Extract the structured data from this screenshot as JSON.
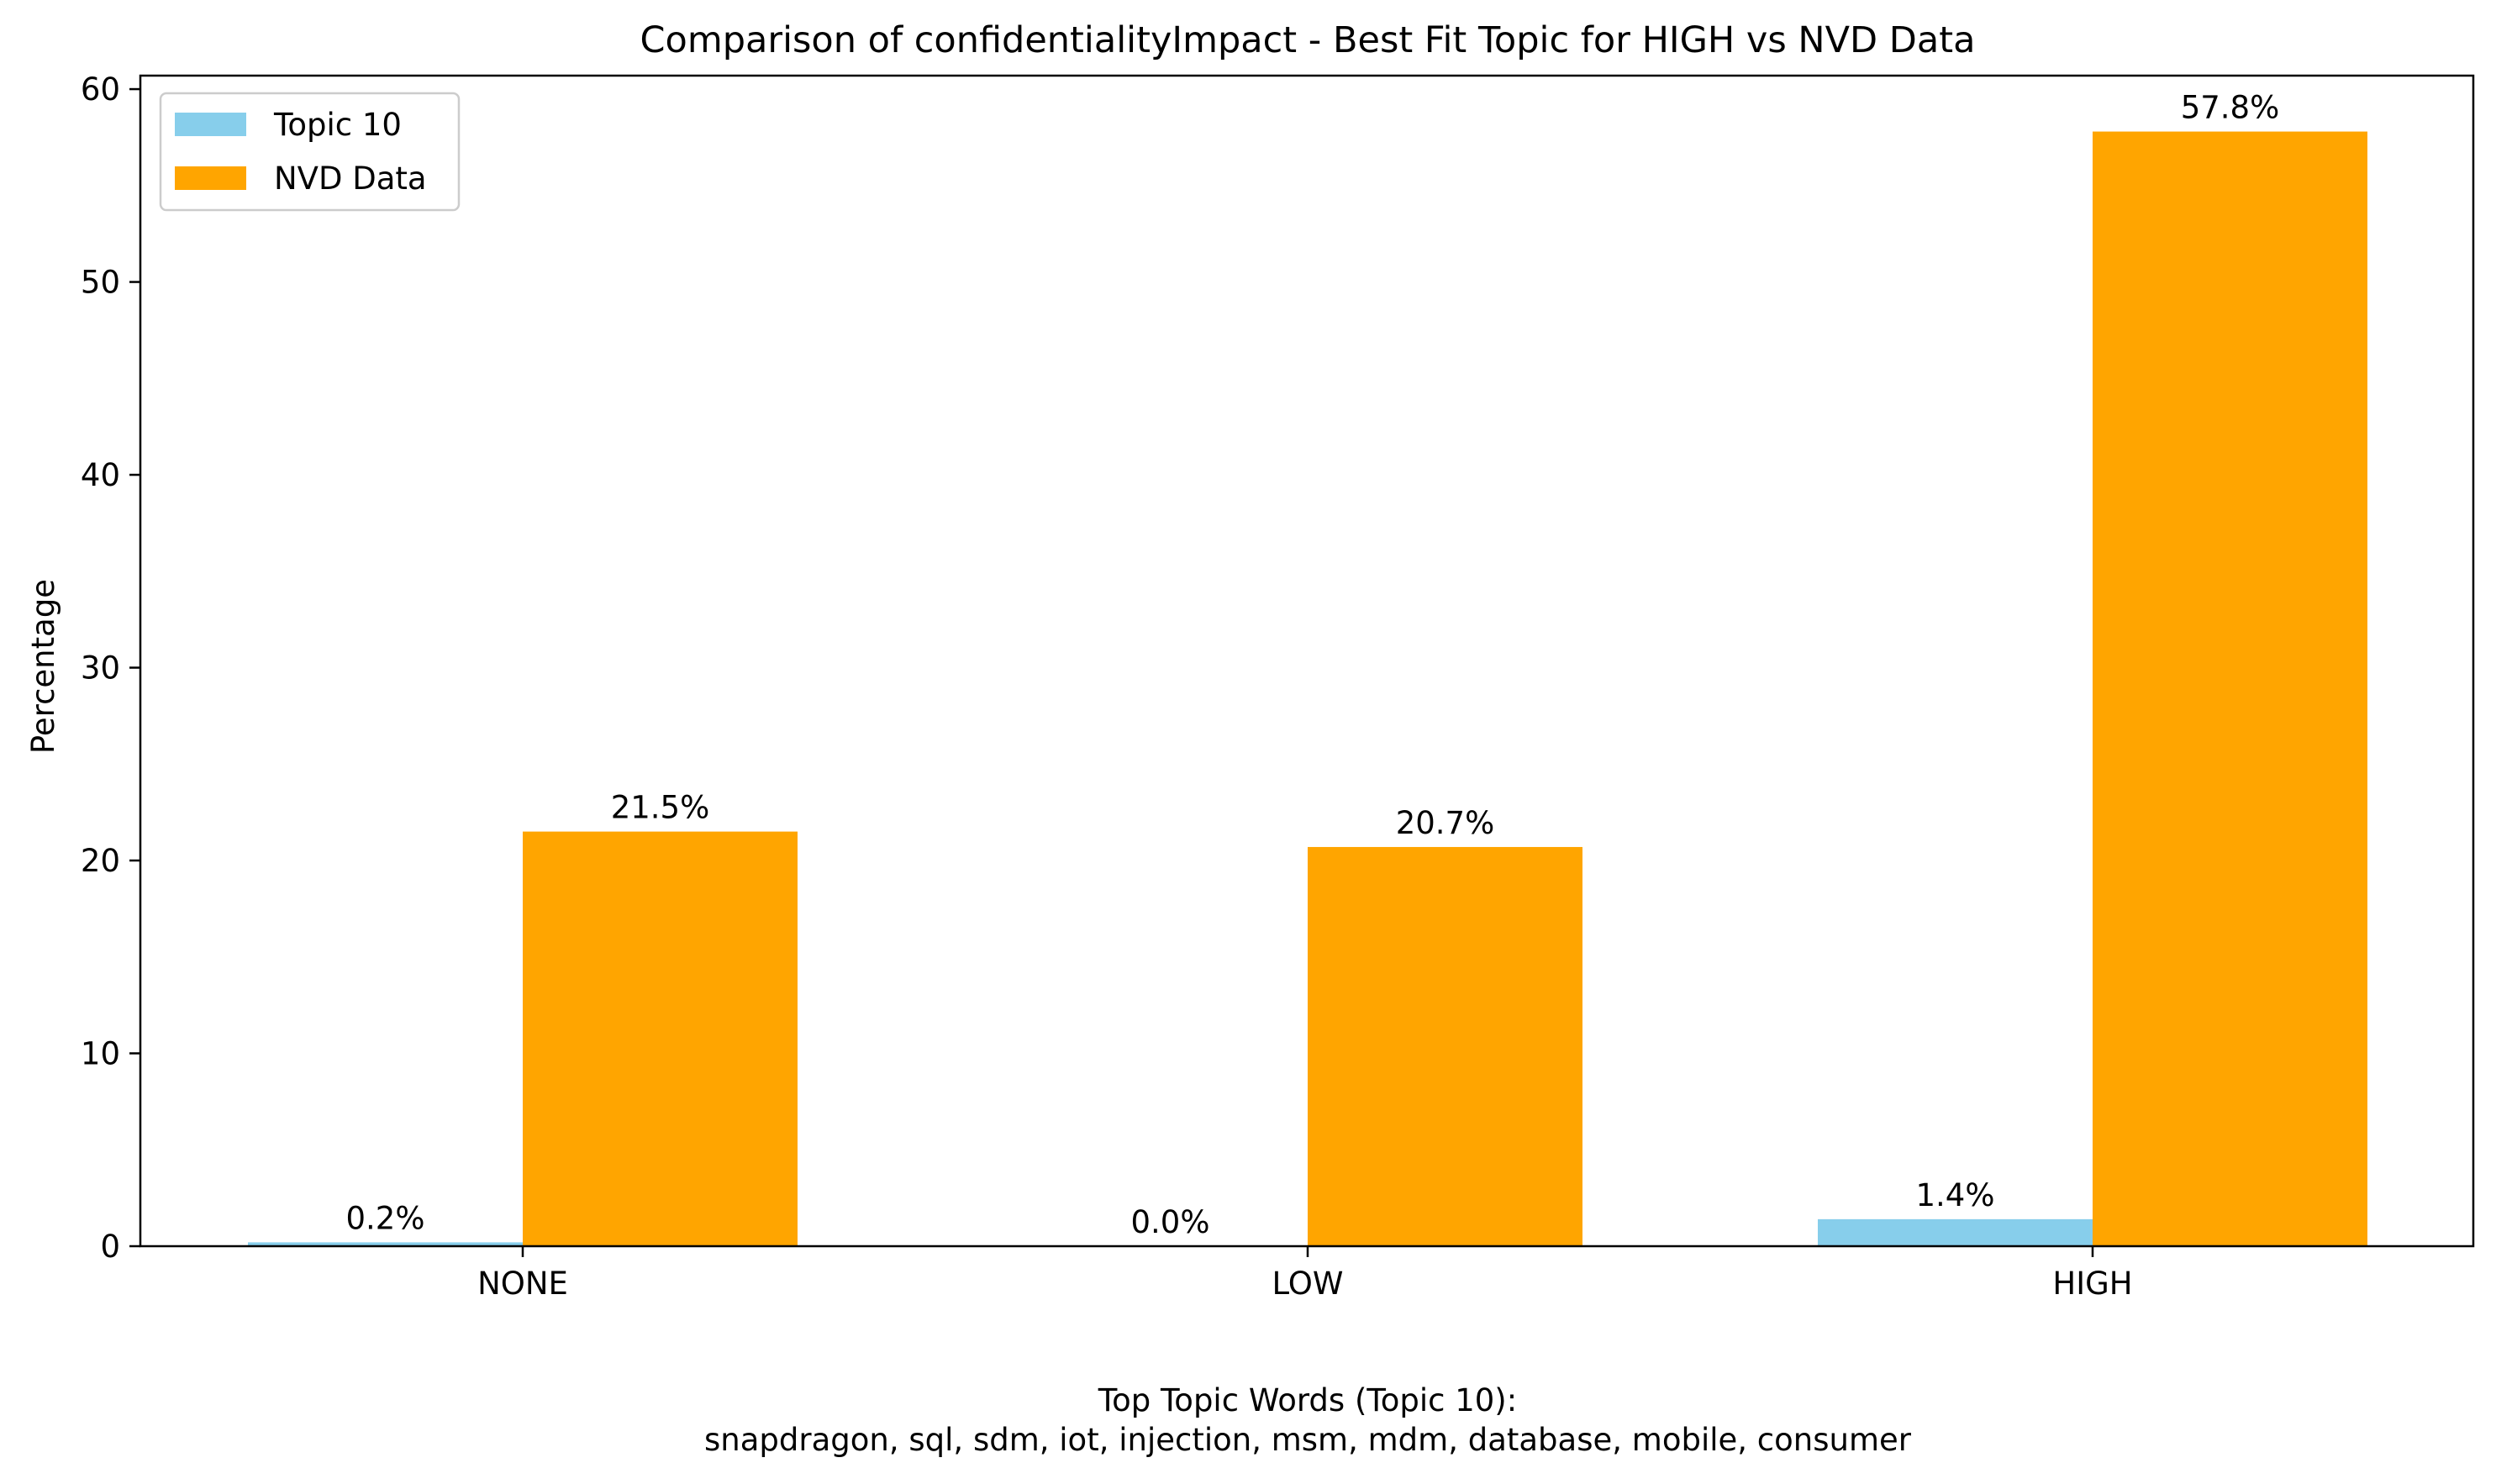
{
  "chart_data": {
    "type": "bar",
    "title": "Comparison of confidentialityImpact - Best Fit Topic for HIGH vs NVD Data",
    "xlabel_lines": [
      "Top Topic Words (Topic 10):",
      "snapdragon,  sql,  sdm,  iot,  injection,  msm,  mdm,  database,  mobile,  consumer"
    ],
    "ylabel": "Percentage",
    "categories": [
      "NONE",
      "LOW",
      "HIGH"
    ],
    "series": [
      {
        "name": "Topic 10",
        "values": [
          0.2,
          0.0,
          1.4
        ],
        "labels": [
          "0.2%",
          "0.0%",
          "1.4%"
        ],
        "color": "#87CEEB"
      },
      {
        "name": "NVD Data",
        "values": [
          21.5,
          20.7,
          57.8
        ],
        "labels": [
          "21.5%",
          "20.7%",
          "57.8%"
        ],
        "color": "#FFA500"
      }
    ],
    "ylim": [
      0,
      60.7
    ],
    "yticks": [
      0,
      10,
      20,
      30,
      40,
      50,
      60
    ],
    "grid": false,
    "legend_position": "top-left"
  }
}
